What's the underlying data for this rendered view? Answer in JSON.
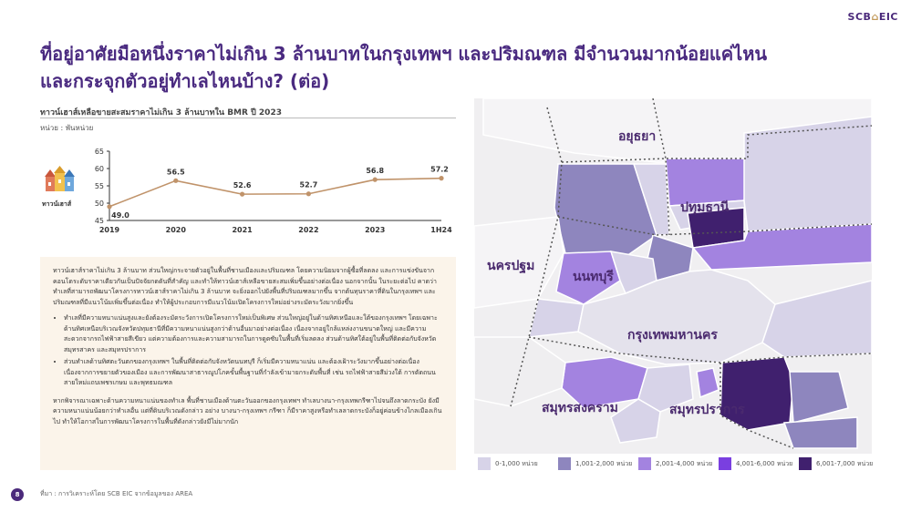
{
  "brand": {
    "logo_text_a": "SCB",
    "logo_text_b": "EIC"
  },
  "title_line1": "ที่อยู่อาศัยมือหนึ่งราคาไม่เกิน 3 ล้านบาทในกรุงเทพฯ และปริมณฑล มีจำนวนมากน้อยแค่ไหน",
  "title_line2": "และกระจุกตัวอยู่ทำเลไหนบ้าง? (ต่อ)",
  "chart_title": "ทาวน์เฮาส์เหลือขายสะสมราคาไม่เกิน 3 ล้านบาทใน BMR ปี 2023",
  "unit_label": "หน่วย : พันหน่วย",
  "chart_data": {
    "type": "line",
    "categories": [
      "2019",
      "2020",
      "2021",
      "2022",
      "2023",
      "1H24"
    ],
    "series": [
      {
        "name": "ทาวน์เฮาส์",
        "values": [
          49.0,
          56.5,
          52.6,
          52.7,
          56.8,
          57.2
        ]
      }
    ],
    "data_labels": [
      "49.0",
      "56.5",
      "52.6",
      "52.7",
      "56.8",
      "57.2"
    ],
    "ylim": [
      45,
      65
    ],
    "yticks": [
      45,
      50,
      55,
      60,
      65
    ],
    "line_color": "#c0936a",
    "grid": false,
    "legend": "left"
  },
  "body": {
    "para1": "ทาวน์เฮาส์ราคาไม่เกิน 3 ล้านบาท ส่วนใหญ่กระจายตัวอยู่ในพื้นที่ชานเมืองและปริมณฑล โดยความนิยมจากผู้ซื้อที่ลดลง และการแข่งขันจากคอนโดระดับราคาเดียวกันเป็นปัจจัยกดดันที่สำคัญ และทำให้ทาวน์เฮาส์เหลือขายสะสมเพิ่มขึ้นอย่างต่อเนื่อง นอกจากนั้น ในระยะต่อไป คาดว่าทำเลที่สามารถพัฒนาโครงการทาวน์เฮาส์ราคาไม่เกิน 3 ล้านบาท จะยิ่งออกไปยังพื้นที่ปริมณฑลมากขึ้น จากต้นทุนราคาที่ดินในกรุงเทพฯ และปริมณฑลที่มีแนวโน้มเพิ่มขึ้นต่อเนื่อง ทำให้ผู้ประกอบการมีแนวโน้มเปิดโครงการใหม่อย่างระมัดระวังมากยิ่งขึ้น",
    "bullets": [
      "ทำเลที่มีความหนาแน่นสูงและยังต้องระมัดระวังการเปิดโครงการใหม่เป็นพิเศษ ส่วนใหญ่อยู่ในด้านทิศเหนือและใต้ของกรุงเทพฯ โดยเฉพาะด้านทิศเหนือบริเวณจังหวัดปทุมธานีที่มีความหนาแน่นสูงกว่าด้านอื่นมาอย่างต่อเนื่อง เนื่องจากอยู่ใกล้แหล่งงานขนาดใหญ่ และมีความสะดวกจากรถไฟฟ้าสายสีเขียว แต่ความต้องการและความสามารถในการดูดซับในพื้นที่เริ่มลดลง ส่วนด้านทิศใต้อยู่ในพื้นที่ติดต่อกับจังหวัดสมุทรสาคร และสมุทรปราการ",
      "ส่วนทำเลด้านทิศตะวันตกของกรุงเทพฯ ในพื้นที่ติดต่อกับจังหวัดนนทบุรี ก็เริ่มมีความหนาแน่น และต้องเฝ้าระวังมากขึ้นอย่างต่อเนื่อง เนื่องจากการขยายตัวของเมือง และการพัฒนาสาธารณูปโภคขั้นพื้นฐานที่กำลังเข้ามายกระดับพื้นที่ เช่น รถไฟฟ้าสายสีม่วงใต้ การตัดถนนสายใหม่แถบเพชรเกษม และพุทธมณฑล"
    ],
    "para2": "หากพิจารณาเฉพาะด้านความหนาแน่นของทำเล พื้นที่ชานเมืองด้านตะวันออกของกรุงเทพฯ ทำเลบางนา-กรุงเทพกรีฑาไปจนถึงลาดกระบัง ยังมีความหนาแน่นน้อยกว่าทำเลอื่น แต่ที่ดินบริเวณดังกล่าว อย่าง บางนา-กรุงเทพฯ กรีฑา ก็มีราคาสูงหรือทำเลลาดกระบังก็อยู่ค่อนข้างไกลเมืองเกินไป ทำให้โอกาสในการพัฒนาโครงการในพื้นที่ดังกล่าวยังมีไม่มากนัก"
  },
  "map": {
    "labels": [
      "อยุธยา",
      "ปทุมธานี",
      "นครปฐม",
      "นนทบุรี",
      "กรุงเทพมหานคร",
      "สมุทรสงคราม",
      "สมุทรปราการ"
    ]
  },
  "legend": {
    "items": [
      {
        "label": "0-1,000 หน่วย",
        "color": "#d7d3e8"
      },
      {
        "label": "1,001-2,000 หน่วย",
        "color": "#8e86be"
      },
      {
        "label": "2,001-4,000 หน่วย",
        "color": "#a383e0"
      },
      {
        "label": "4,001-6,000 หน่วย",
        "color": "#7a3fe0"
      },
      {
        "label": "6,001-7,000 หน่วย",
        "color": "#40206e"
      }
    ]
  },
  "footer": {
    "page": "8",
    "source": "ที่มา : การวิเคราะห์โดย SCB EIC จากข้อมูลของ AREA"
  }
}
